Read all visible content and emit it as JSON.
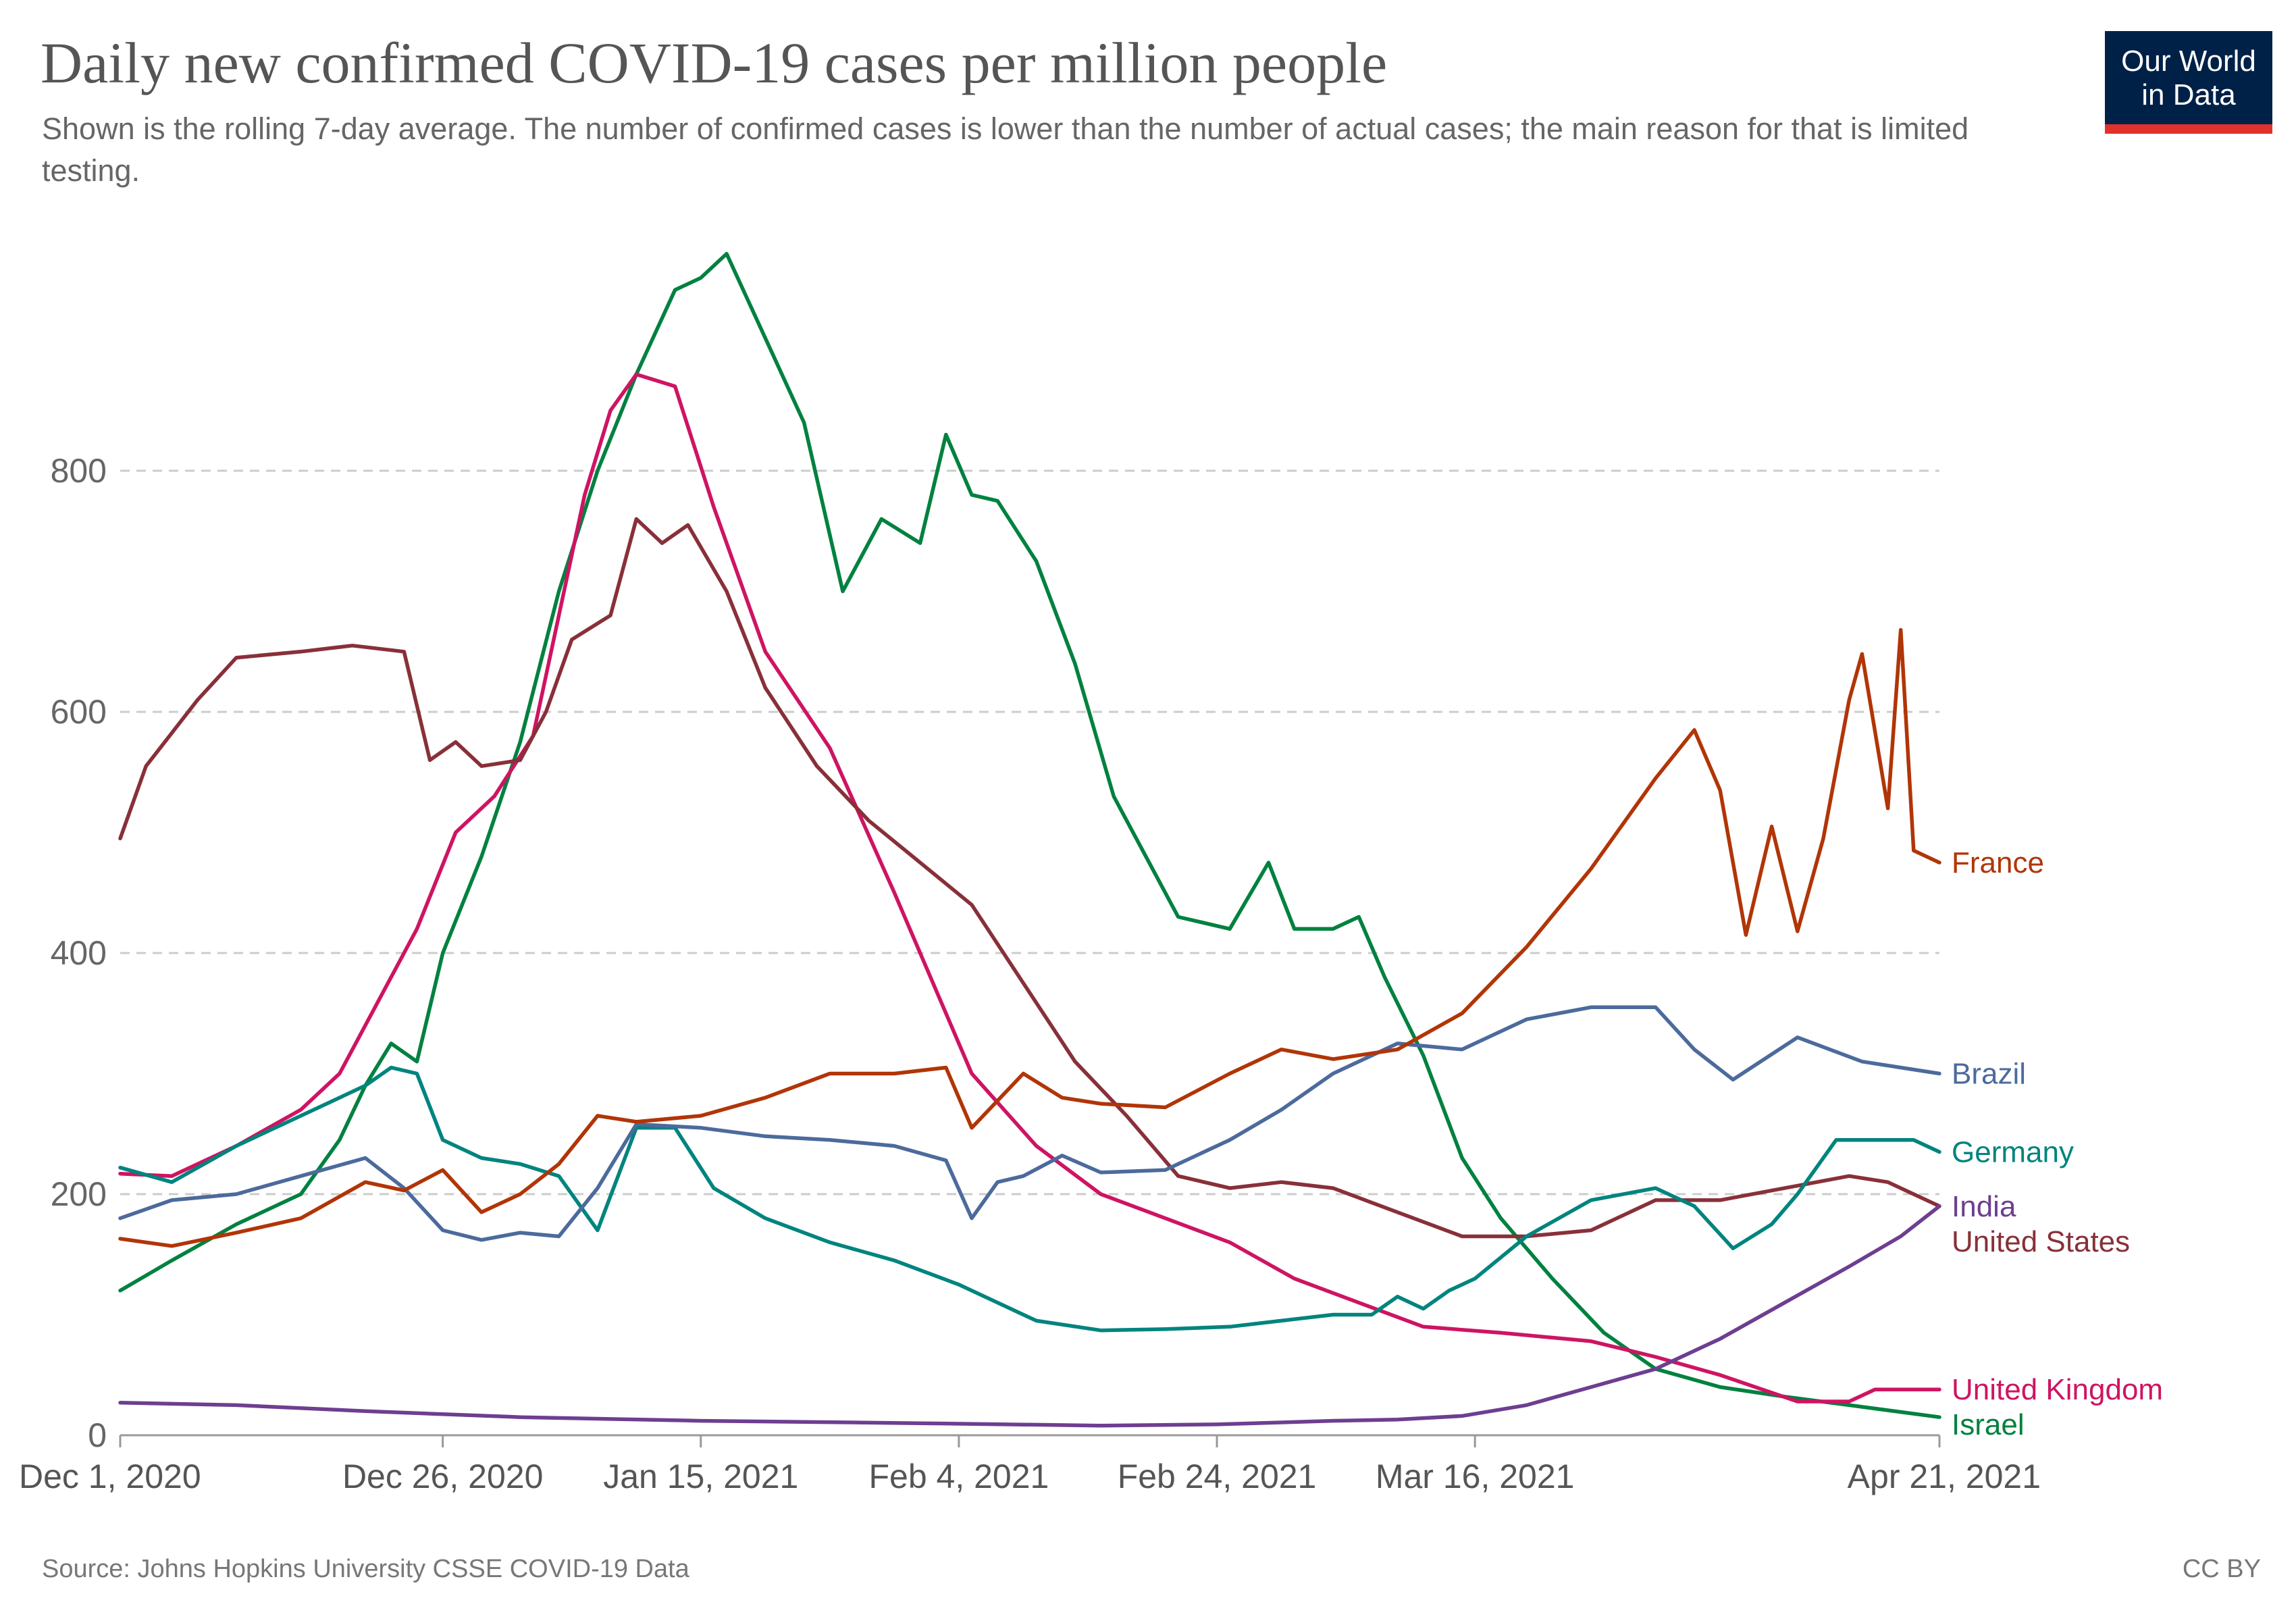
{
  "title": "Daily new confirmed COVID-19 cases per million people",
  "subtitle": "Shown is the rolling 7-day average. The number of confirmed cases is lower than the number of actual cases; the main reason for that is limited testing.",
  "logo": {
    "line1": "Our World",
    "line2": "in Data"
  },
  "source": "Source: Johns Hopkins University CSSE COVID-19 Data",
  "license": "CC BY",
  "chart_data": {
    "type": "line",
    "xlabel": "",
    "ylabel": "",
    "ylim": [
      0,
      1000
    ],
    "xlim": [
      "2020-12-01",
      "2021-04-21"
    ],
    "y_ticks": [
      0,
      200,
      400,
      600,
      800
    ],
    "y_tick_labels": [
      "0",
      "200",
      "400",
      "600",
      "800"
    ],
    "x_ticks": [
      "2020-12-01",
      "2020-12-26",
      "2021-01-15",
      "2021-02-04",
      "2021-02-24",
      "2021-03-16",
      "2021-04-21"
    ],
    "x_tick_labels": [
      "Dec 1, 2020",
      "Dec 26, 2020",
      "Jan 15, 2021",
      "Feb 4, 2021",
      "Feb 24, 2021",
      "Mar 16, 2021",
      "Apr 21, 2021"
    ],
    "grid": "horizontal dashed",
    "legend": "inline labels at right end of lines",
    "series": [
      {
        "name": "France",
        "color": "#b13507",
        "x": [
          "2020-12-01",
          "2020-12-05",
          "2020-12-10",
          "2020-12-15",
          "2020-12-20",
          "2020-12-23",
          "2020-12-26",
          "2020-12-29",
          "2021-01-01",
          "2021-01-04",
          "2021-01-07",
          "2021-01-10",
          "2021-01-15",
          "2021-01-20",
          "2021-01-25",
          "2021-01-30",
          "2021-02-03",
          "2021-02-05",
          "2021-02-09",
          "2021-02-12",
          "2021-02-15",
          "2021-02-20",
          "2021-02-25",
          "2021-03-01",
          "2021-03-05",
          "2021-03-10",
          "2021-03-15",
          "2021-03-20",
          "2021-03-25",
          "2021-03-30",
          "2021-04-02",
          "2021-04-04",
          "2021-04-06",
          "2021-04-08",
          "2021-04-10",
          "2021-04-12",
          "2021-04-14",
          "2021-04-15",
          "2021-04-17",
          "2021-04-18",
          "2021-04-19",
          "2021-04-21"
        ],
        "values": [
          163,
          157,
          168,
          180,
          210,
          203,
          220,
          185,
          200,
          225,
          265,
          260,
          265,
          280,
          300,
          300,
          305,
          255,
          300,
          280,
          275,
          272,
          300,
          320,
          312,
          320,
          350,
          405,
          470,
          545,
          585,
          535,
          415,
          505,
          418,
          495,
          610,
          648,
          520,
          668,
          485,
          475
        ]
      },
      {
        "name": "Brazil",
        "color": "#4c6a9c",
        "x": [
          "2020-12-01",
          "2020-12-05",
          "2020-12-10",
          "2020-12-15",
          "2020-12-20",
          "2020-12-23",
          "2020-12-26",
          "2020-12-29",
          "2021-01-01",
          "2021-01-04",
          "2021-01-07",
          "2021-01-10",
          "2021-01-15",
          "2021-01-20",
          "2021-01-25",
          "2021-01-30",
          "2021-02-03",
          "2021-02-05",
          "2021-02-07",
          "2021-02-09",
          "2021-02-12",
          "2021-02-15",
          "2021-02-20",
          "2021-02-25",
          "2021-03-01",
          "2021-03-05",
          "2021-03-10",
          "2021-03-15",
          "2021-03-20",
          "2021-03-25",
          "2021-03-30",
          "2021-04-02",
          "2021-04-05",
          "2021-04-10",
          "2021-04-15",
          "2021-04-18",
          "2021-04-21"
        ],
        "values": [
          180,
          195,
          200,
          215,
          230,
          205,
          170,
          162,
          168,
          165,
          205,
          258,
          255,
          248,
          245,
          240,
          228,
          180,
          210,
          215,
          232,
          218,
          220,
          245,
          270,
          300,
          325,
          320,
          345,
          355,
          355,
          320,
          295,
          330,
          310,
          305,
          300
        ]
      },
      {
        "name": "Germany",
        "color": "#00847e",
        "x": [
          "2020-12-01",
          "2020-12-05",
          "2020-12-10",
          "2020-12-15",
          "2020-12-20",
          "2020-12-22",
          "2020-12-24",
          "2020-12-26",
          "2020-12-29",
          "2021-01-01",
          "2021-01-04",
          "2021-01-07",
          "2021-01-10",
          "2021-01-13",
          "2021-01-16",
          "2021-01-20",
          "2021-01-25",
          "2021-01-30",
          "2021-02-04",
          "2021-02-10",
          "2021-02-15",
          "2021-02-20",
          "2021-02-25",
          "2021-03-01",
          "2021-03-05",
          "2021-03-08",
          "2021-03-10",
          "2021-03-12",
          "2021-03-14",
          "2021-03-16",
          "2021-03-20",
          "2021-03-25",
          "2021-03-30",
          "2021-04-02",
          "2021-04-05",
          "2021-04-08",
          "2021-04-10",
          "2021-04-13",
          "2021-04-16",
          "2021-04-19",
          "2021-04-21"
        ],
        "values": [
          222,
          210,
          240,
          265,
          290,
          305,
          300,
          245,
          230,
          225,
          215,
          170,
          255,
          255,
          205,
          180,
          160,
          145,
          125,
          95,
          87,
          88,
          90,
          95,
          100,
          100,
          115,
          105,
          120,
          130,
          165,
          195,
          205,
          190,
          155,
          175,
          200,
          245,
          245,
          245,
          235
        ]
      },
      {
        "name": "India",
        "color": "#6d3e91",
        "x": [
          "2020-12-01",
          "2020-12-10",
          "2020-12-20",
          "2021-01-01",
          "2021-01-15",
          "2021-02-01",
          "2021-02-15",
          "2021-02-24",
          "2021-03-05",
          "2021-03-10",
          "2021-03-15",
          "2021-03-20",
          "2021-03-25",
          "2021-03-30",
          "2021-04-04",
          "2021-04-09",
          "2021-04-14",
          "2021-04-18",
          "2021-04-21"
        ],
        "values": [
          27,
          25,
          20,
          15,
          12,
          10,
          8,
          9,
          12,
          13,
          16,
          25,
          40,
          55,
          80,
          110,
          140,
          165,
          190
        ]
      },
      {
        "name": "United States",
        "color": "#883039",
        "x": [
          "2020-12-01",
          "2020-12-03",
          "2020-12-07",
          "2020-12-10",
          "2020-12-15",
          "2020-12-19",
          "2020-12-23",
          "2020-12-25",
          "2020-12-27",
          "2020-12-29",
          "2021-01-01",
          "2021-01-03",
          "2021-01-05",
          "2021-01-08",
          "2021-01-10",
          "2021-01-12",
          "2021-01-14",
          "2021-01-17",
          "2021-01-20",
          "2021-01-24",
          "2021-01-28",
          "2021-02-01",
          "2021-02-05",
          "2021-02-09",
          "2021-02-13",
          "2021-02-17",
          "2021-02-21",
          "2021-02-25",
          "2021-03-01",
          "2021-03-05",
          "2021-03-10",
          "2021-03-15",
          "2021-03-20",
          "2021-03-25",
          "2021-03-30",
          "2021-04-04",
          "2021-04-09",
          "2021-04-14",
          "2021-04-17",
          "2021-04-21"
        ],
        "values": [
          495,
          555,
          610,
          645,
          650,
          655,
          650,
          560,
          575,
          555,
          560,
          600,
          660,
          680,
          760,
          740,
          755,
          700,
          620,
          555,
          510,
          475,
          440,
          375,
          310,
          265,
          215,
          205,
          210,
          205,
          185,
          165,
          165,
          170,
          195,
          195,
          205,
          215,
          210,
          190
        ]
      },
      {
        "name": "United Kingdom",
        "color": "#ce1462",
        "x": [
          "2020-12-01",
          "2020-12-05",
          "2020-12-10",
          "2020-12-15",
          "2020-12-18",
          "2020-12-21",
          "2020-12-24",
          "2020-12-27",
          "2020-12-30",
          "2021-01-02",
          "2021-01-04",
          "2021-01-06",
          "2021-01-08",
          "2021-01-10",
          "2021-01-13",
          "2021-01-16",
          "2021-01-20",
          "2021-01-25",
          "2021-01-30",
          "2021-02-05",
          "2021-02-10",
          "2021-02-15",
          "2021-02-20",
          "2021-02-25",
          "2021-03-02",
          "2021-03-07",
          "2021-03-12",
          "2021-03-18",
          "2021-03-25",
          "2021-03-30",
          "2021-04-04",
          "2021-04-10",
          "2021-04-14",
          "2021-04-16",
          "2021-04-21"
        ],
        "values": [
          217,
          215,
          240,
          270,
          300,
          360,
          420,
          500,
          530,
          580,
          680,
          780,
          850,
          880,
          870,
          770,
          650,
          570,
          450,
          300,
          240,
          200,
          180,
          160,
          130,
          110,
          90,
          85,
          78,
          65,
          50,
          28,
          28,
          38,
          38
        ]
      },
      {
        "name": "Israel",
        "color": "#00813f",
        "x": [
          "2020-12-01",
          "2020-12-05",
          "2020-12-10",
          "2020-12-15",
          "2020-12-18",
          "2020-12-20",
          "2020-12-22",
          "2020-12-24",
          "2020-12-26",
          "2020-12-29",
          "2021-01-01",
          "2021-01-04",
          "2021-01-07",
          "2021-01-10",
          "2021-01-13",
          "2021-01-15",
          "2021-01-17",
          "2021-01-20",
          "2021-01-23",
          "2021-01-26",
          "2021-01-29",
          "2021-02-01",
          "2021-02-03",
          "2021-02-05",
          "2021-02-07",
          "2021-02-10",
          "2021-02-13",
          "2021-02-16",
          "2021-02-19",
          "2021-02-21",
          "2021-02-25",
          "2021-02-28",
          "2021-03-02",
          "2021-03-05",
          "2021-03-07",
          "2021-03-09",
          "2021-03-12",
          "2021-03-15",
          "2021-03-18",
          "2021-03-22",
          "2021-03-26",
          "2021-03-30",
          "2021-04-04",
          "2021-04-09",
          "2021-04-14",
          "2021-04-21"
        ],
        "values": [
          120,
          145,
          175,
          200,
          245,
          290,
          325,
          310,
          400,
          480,
          575,
          700,
          800,
          880,
          950,
          960,
          980,
          910,
          840,
          700,
          760,
          740,
          830,
          780,
          775,
          725,
          640,
          530,
          470,
          430,
          420,
          475,
          420,
          420,
          430,
          380,
          315,
          230,
          180,
          130,
          85,
          55,
          40,
          32,
          25,
          15
        ]
      }
    ]
  }
}
